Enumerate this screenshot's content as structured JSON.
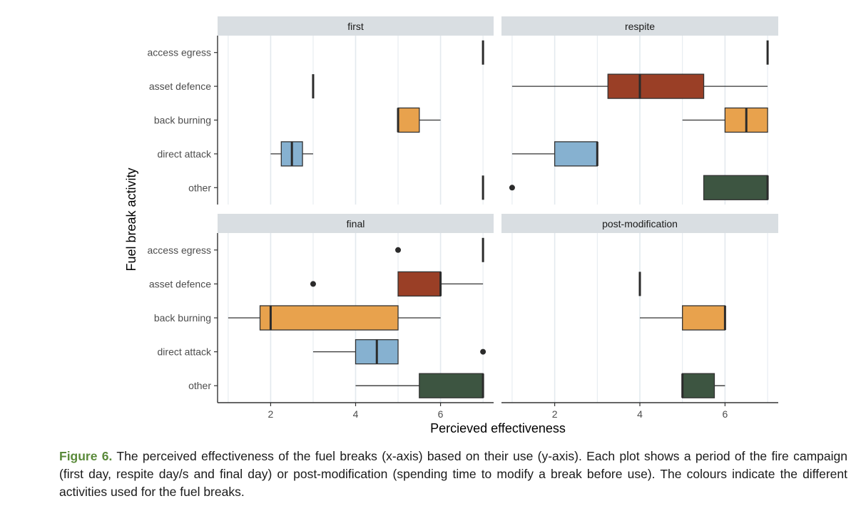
{
  "chart_data": {
    "type": "boxplot",
    "xlabel": "Percieved effectiveness",
    "ylabel": "Fuel break activity",
    "xlim": [
      0.75,
      7.25
    ],
    "xticks": [
      "2",
      "4",
      "6"
    ],
    "categories": [
      "access egress",
      "asset defence",
      "back burning",
      "direct attack",
      "other"
    ],
    "colors": {
      "access egress": "#2b2b2b",
      "asset defence": "#9a3f26",
      "back burning": "#e8a24d",
      "direct attack": "#86b1d0",
      "other": "#3d5541"
    },
    "panels": [
      {
        "title": "first",
        "boxes": [
          {
            "category": "access egress",
            "whisker_low": 7,
            "q1": 7,
            "median": 7,
            "q3": 7,
            "whisker_high": 7,
            "outliers": []
          },
          {
            "category": "asset defence",
            "whisker_low": 3,
            "q1": 3,
            "median": 3,
            "q3": 3,
            "whisker_high": 3,
            "outliers": []
          },
          {
            "category": "back burning",
            "whisker_low": 5,
            "q1": 5,
            "median": 5,
            "q3": 5.5,
            "whisker_high": 6,
            "outliers": []
          },
          {
            "category": "direct attack",
            "whisker_low": 2,
            "q1": 2.25,
            "median": 2.5,
            "q3": 2.75,
            "whisker_high": 3,
            "outliers": []
          },
          {
            "category": "other",
            "whisker_low": 7,
            "q1": 7,
            "median": 7,
            "q3": 7,
            "whisker_high": 7,
            "outliers": []
          }
        ]
      },
      {
        "title": "respite",
        "boxes": [
          {
            "category": "access egress",
            "whisker_low": 7,
            "q1": 7,
            "median": 7,
            "q3": 7,
            "whisker_high": 7,
            "outliers": []
          },
          {
            "category": "asset defence",
            "whisker_low": 1,
            "q1": 3.25,
            "median": 4,
            "q3": 5.5,
            "whisker_high": 7,
            "outliers": []
          },
          {
            "category": "back burning",
            "whisker_low": 5,
            "q1": 6,
            "median": 6.5,
            "q3": 7,
            "whisker_high": 7,
            "outliers": []
          },
          {
            "category": "direct attack",
            "whisker_low": 1,
            "q1": 2,
            "median": 3,
            "q3": 3,
            "whisker_high": 3,
            "outliers": []
          },
          {
            "category": "other",
            "whisker_low": 5.5,
            "q1": 5.5,
            "median": 7,
            "q3": 7,
            "whisker_high": 7,
            "outliers": [
              1
            ]
          }
        ]
      },
      {
        "title": "final",
        "boxes": [
          {
            "category": "access egress",
            "whisker_low": 7,
            "q1": 7,
            "median": 7,
            "q3": 7,
            "whisker_high": 7,
            "outliers": [
              5
            ]
          },
          {
            "category": "asset defence",
            "whisker_low": 5,
            "q1": 5,
            "median": 6,
            "q3": 6,
            "whisker_high": 7,
            "outliers": [
              3
            ]
          },
          {
            "category": "back burning",
            "whisker_low": 1,
            "q1": 1.75,
            "median": 2,
            "q3": 5,
            "whisker_high": 6,
            "outliers": []
          },
          {
            "category": "direct attack",
            "whisker_low": 3,
            "q1": 4,
            "median": 4.5,
            "q3": 5,
            "whisker_high": 5,
            "outliers": [
              7
            ]
          },
          {
            "category": "other",
            "whisker_low": 4,
            "q1": 5.5,
            "median": 7,
            "q3": 7,
            "whisker_high": 7,
            "outliers": []
          }
        ]
      },
      {
        "title": "post-modification",
        "boxes": [
          {
            "category": "asset defence",
            "whisker_low": 4,
            "q1": 4,
            "median": 4,
            "q3": 4,
            "whisker_high": 4,
            "outliers": []
          },
          {
            "category": "back burning",
            "whisker_low": 4,
            "q1": 5,
            "median": 6,
            "q3": 6,
            "whisker_high": 6,
            "outliers": []
          },
          {
            "category": "other",
            "whisker_low": 5,
            "q1": 5,
            "median": 5,
            "q3": 5.75,
            "whisker_high": 6,
            "outliers": []
          }
        ]
      }
    ]
  },
  "caption": {
    "label": "Figure 6.",
    "text": "The perceived effectiveness of the fuel breaks (x-axis) based on their use (y-axis). Each plot shows a period of the fire campaign (first day, respite day/s and final day) or post-modification (spending time to modify a break before use). The colours indicate the different activities used for the fuel breaks."
  }
}
